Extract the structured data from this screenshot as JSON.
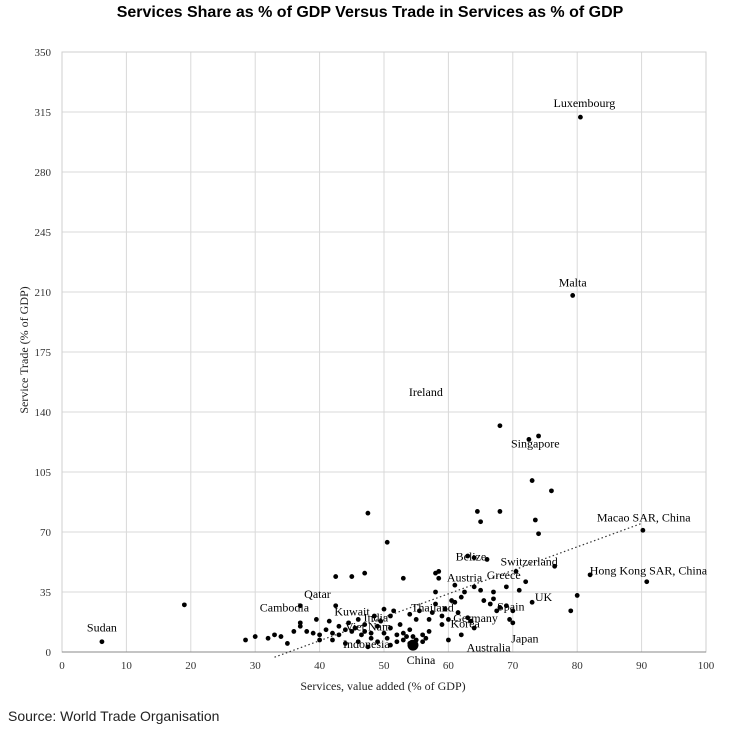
{
  "chart_data": {
    "type": "scatter",
    "title": "Services Share as % of GDP Versus Trade in Services as % of GDP",
    "xlabel": "Services, value added (% of GDP)",
    "ylabel": "Service Trade (% of GDP)",
    "xlim": [
      0,
      100
    ],
    "ylim": [
      0,
      350
    ],
    "xticks": [
      "0",
      "10",
      "20",
      "30",
      "40",
      "50",
      "60",
      "70",
      "80",
      "90",
      "100"
    ],
    "yticks": [
      "0",
      "35",
      "70",
      "105",
      "140",
      "175",
      "210",
      "245",
      "280",
      "315",
      "350"
    ],
    "grid": true,
    "trendline": {
      "style": "dotted",
      "x": [
        33,
        90
      ],
      "y": [
        -3,
        75
      ]
    },
    "highlight": {
      "label": "China",
      "x": 54.5,
      "y": 4
    },
    "annotations": [
      {
        "label": "Luxembourg",
        "x": 80.5,
        "y": 312
      },
      {
        "label": "Malta",
        "x": 79.3,
        "y": 208
      },
      {
        "label": "Ireland",
        "x": 56.5,
        "y": 144
      },
      {
        "label": "Singapore",
        "x": 73.8,
        "y": 127
      },
      {
        "label": "Macao SAR, China",
        "x": 90.2,
        "y": 71
      },
      {
        "label": "Hong Kong SAR, China",
        "x": 90.8,
        "y": 41
      },
      {
        "label": "Switzerland",
        "x": 71.5,
        "y": 48
      },
      {
        "label": "Belize",
        "x": 63.5,
        "y": 51
      },
      {
        "label": "Austria",
        "x": 62.5,
        "y": 40
      },
      {
        "label": "Greece",
        "x": 67.5,
        "y": 42
      },
      {
        "label": "UK",
        "x": 72.5,
        "y": 32
      },
      {
        "label": "Spain",
        "x": 68.5,
        "y": 26
      },
      {
        "label": "Germany",
        "x": 62,
        "y": 21
      },
      {
        "label": "Korea",
        "x": 62.5,
        "y": 15
      },
      {
        "label": "Japan",
        "x": 71,
        "y": 9
      },
      {
        "label": "Australia",
        "x": 65,
        "y": 8
      },
      {
        "label": "Thailand",
        "x": 57,
        "y": 26
      },
      {
        "label": "India",
        "x": 49,
        "y": 20
      },
      {
        "label": "Kuwait",
        "x": 44,
        "y": 23
      },
      {
        "label": "Qatar",
        "x": 39,
        "y": 31
      },
      {
        "label": "Cambodia",
        "x": 33.5,
        "y": 23
      },
      {
        "label": "Viet Nam",
        "x": 45.5,
        "y": 15
      },
      {
        "label": "Indonesia",
        "x": 45.5,
        "y": 7
      },
      {
        "label": "Sudan",
        "x": 6.2,
        "y": 6
      }
    ],
    "points": [
      [
        6.2,
        6
      ],
      [
        19,
        27.5
      ],
      [
        28.5,
        7
      ],
      [
        30,
        9
      ],
      [
        32,
        8
      ],
      [
        33,
        10
      ],
      [
        34,
        9
      ],
      [
        35,
        5
      ],
      [
        36,
        12
      ],
      [
        37,
        17
      ],
      [
        37,
        15
      ],
      [
        38,
        12
      ],
      [
        39,
        11
      ],
      [
        39.5,
        19
      ],
      [
        40,
        7
      ],
      [
        40,
        10
      ],
      [
        41,
        13
      ],
      [
        41.5,
        18
      ],
      [
        42,
        7
      ],
      [
        42,
        11
      ],
      [
        42.5,
        27
      ],
      [
        43,
        15
      ],
      [
        43,
        10
      ],
      [
        44,
        5
      ],
      [
        44,
        13
      ],
      [
        44.5,
        17
      ],
      [
        45,
        12
      ],
      [
        45.5,
        14
      ],
      [
        46,
        6
      ],
      [
        46,
        19
      ],
      [
        46.5,
        10
      ],
      [
        47,
        16
      ],
      [
        47,
        12
      ],
      [
        47.5,
        3
      ],
      [
        48,
        8
      ],
      [
        48,
        11
      ],
      [
        48.5,
        21
      ],
      [
        49,
        6
      ],
      [
        49,
        15
      ],
      [
        49.5,
        18
      ],
      [
        50,
        25
      ],
      [
        50,
        11
      ],
      [
        50.5,
        8
      ],
      [
        51,
        4
      ],
      [
        51,
        14
      ],
      [
        51,
        21
      ],
      [
        51.5,
        24
      ],
      [
        52,
        6
      ],
      [
        52,
        10
      ],
      [
        52.5,
        16
      ],
      [
        53,
        7
      ],
      [
        53,
        11
      ],
      [
        53.5,
        9
      ],
      [
        54,
        5
      ],
      [
        54,
        13
      ],
      [
        54,
        22
      ],
      [
        54.5,
        9
      ],
      [
        55,
        7
      ],
      [
        55,
        19
      ],
      [
        55.5,
        24
      ],
      [
        56,
        6
      ],
      [
        56,
        10
      ],
      [
        56.5,
        8
      ],
      [
        57,
        12
      ],
      [
        57,
        19
      ],
      [
        57.5,
        23
      ],
      [
        58,
        28
      ],
      [
        58,
        35
      ],
      [
        58.5,
        43
      ],
      [
        58.5,
        47
      ],
      [
        59,
        16
      ],
      [
        59,
        21
      ],
      [
        59.5,
        25
      ],
      [
        60,
        7
      ],
      [
        60,
        19
      ],
      [
        60.5,
        30
      ],
      [
        61,
        29
      ],
      [
        61,
        39
      ],
      [
        61.5,
        23
      ],
      [
        62,
        10
      ],
      [
        62,
        32
      ],
      [
        62.5,
        35
      ],
      [
        63,
        20
      ],
      [
        63,
        56
      ],
      [
        63.5,
        18
      ],
      [
        64,
        14
      ],
      [
        64,
        38
      ],
      [
        64,
        55
      ],
      [
        64.5,
        82
      ],
      [
        65,
        76
      ],
      [
        65,
        36
      ],
      [
        65.5,
        30
      ],
      [
        66,
        54
      ],
      [
        66.5,
        28
      ],
      [
        67,
        31
      ],
      [
        67,
        35
      ],
      [
        67.5,
        24
      ],
      [
        68,
        26
      ],
      [
        68,
        82
      ],
      [
        68,
        132
      ],
      [
        69,
        27
      ],
      [
        69,
        38
      ],
      [
        69.5,
        19
      ],
      [
        70,
        17
      ],
      [
        70,
        24
      ],
      [
        70.5,
        47
      ],
      [
        71,
        36
      ],
      [
        72,
        41
      ],
      [
        72.5,
        124
      ],
      [
        73,
        29
      ],
      [
        73,
        100
      ],
      [
        73.5,
        77
      ],
      [
        74,
        69
      ],
      [
        74,
        126
      ],
      [
        76,
        94
      ],
      [
        76.5,
        50
      ],
      [
        79,
        24
      ],
      [
        79.3,
        208
      ],
      [
        80,
        33
      ],
      [
        80.5,
        312
      ],
      [
        82,
        45
      ],
      [
        90.2,
        71
      ],
      [
        90.8,
        41
      ],
      [
        42.5,
        44
      ],
      [
        47.5,
        81
      ],
      [
        50.5,
        64
      ],
      [
        53,
        43
      ],
      [
        58,
        46
      ],
      [
        47,
        46
      ],
      [
        45,
        44
      ],
      [
        37,
        27
      ]
    ]
  },
  "source": "Source: World Trade Organisation"
}
